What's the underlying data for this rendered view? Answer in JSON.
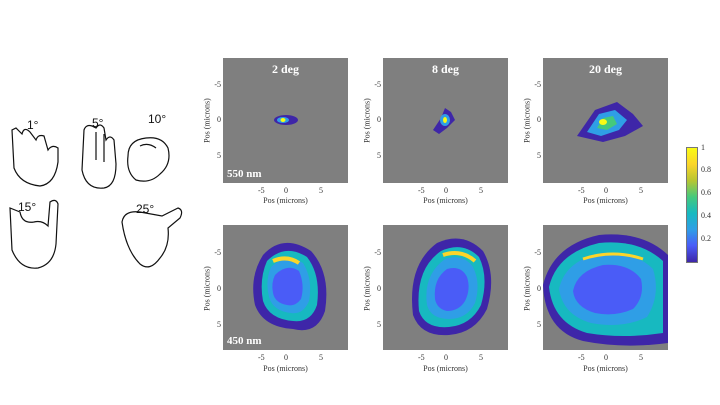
{
  "hand_angles": [
    "1°",
    "5°",
    "10°",
    "15°",
    "25°"
  ],
  "panels": [
    {
      "title": "2 deg",
      "wavelength": "550 nm"
    },
    {
      "title": "8 deg",
      "wavelength": ""
    },
    {
      "title": "20 deg",
      "wavelength": ""
    },
    {
      "title": "",
      "wavelength": "450 nm"
    },
    {
      "title": "",
      "wavelength": ""
    },
    {
      "title": "",
      "wavelength": ""
    }
  ],
  "axis": {
    "xlabel": "Pos (microns)",
    "ylabel": "Pos (microns)",
    "xticks": [
      "-5",
      "0",
      "5"
    ],
    "yticks": [
      "-5",
      "0",
      "5"
    ]
  },
  "colorbar": {
    "ticks": [
      "1",
      "0.8",
      "0.6",
      "0.4",
      "0.2"
    ]
  },
  "colors": {
    "background": "#7f7f7f",
    "low": "#3e26a8",
    "mid": "#17b9c0",
    "high": "#f9fb15"
  }
}
